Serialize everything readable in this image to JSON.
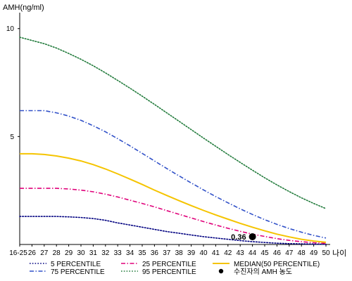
{
  "chart_data": {
    "type": "line",
    "ylabel": "AMH(ng/ml)",
    "xlabel": "나이",
    "y_ticks": [
      "5",
      "10"
    ],
    "ylim": [
      0,
      11
    ],
    "x_ticks": [
      "16-25",
      "26",
      "27",
      "28",
      "29",
      "30",
      "31",
      "32",
      "33",
      "34",
      "35",
      "36",
      "37",
      "38",
      "39",
      "40",
      "41",
      "42",
      "43",
      "44",
      "45",
      "46",
      "47",
      "48",
      "49",
      "50"
    ],
    "x": [
      25,
      26,
      27,
      28,
      29,
      30,
      31,
      32,
      33,
      34,
      35,
      36,
      37,
      38,
      39,
      40,
      41,
      42,
      43,
      44,
      45,
      46,
      47,
      48,
      49,
      50
    ],
    "series": [
      {
        "name": "5 PERCENTILE",
        "color": "#000080",
        "dash": "dotted",
        "values": [
          1.3,
          1.3,
          1.3,
          1.3,
          1.28,
          1.25,
          1.2,
          1.12,
          1.0,
          0.9,
          0.8,
          0.7,
          0.6,
          0.52,
          0.44,
          0.36,
          0.3,
          0.24,
          0.18,
          0.13,
          0.09,
          0.06,
          0.04,
          0.03,
          0.02,
          0.01
        ]
      },
      {
        "name": "25 PERCENTILE",
        "color": "#e0007a",
        "dash": "dashdot",
        "values": [
          2.6,
          2.6,
          2.6,
          2.6,
          2.57,
          2.52,
          2.44,
          2.33,
          2.2,
          2.05,
          1.9,
          1.74,
          1.57,
          1.4,
          1.23,
          1.06,
          0.9,
          0.75,
          0.61,
          0.48,
          0.37,
          0.27,
          0.19,
          0.13,
          0.08,
          0.05
        ]
      },
      {
        "name": "MEDIAN(50 PERCENTILE)",
        "color": "#f5c400",
        "dash": "solid",
        "values": [
          4.2,
          4.2,
          4.17,
          4.1,
          4.0,
          3.87,
          3.7,
          3.5,
          3.27,
          3.03,
          2.78,
          2.52,
          2.27,
          2.03,
          1.8,
          1.58,
          1.37,
          1.17,
          0.98,
          0.8,
          0.63,
          0.48,
          0.35,
          0.24,
          0.16,
          0.1
        ]
      },
      {
        "name": "75 PERCENTILE",
        "color": "#3050c8",
        "dash": "dashdot",
        "values": [
          6.2,
          6.2,
          6.2,
          6.1,
          5.95,
          5.75,
          5.5,
          5.22,
          4.9,
          4.57,
          4.22,
          3.87,
          3.52,
          3.18,
          2.85,
          2.53,
          2.22,
          1.93,
          1.65,
          1.39,
          1.15,
          0.93,
          0.74,
          0.57,
          0.42,
          0.3
        ]
      },
      {
        "name": "95 PERCENTILE",
        "color": "#207a3a",
        "dash": "dotted",
        "values": [
          9.6,
          9.45,
          9.3,
          9.1,
          8.85,
          8.58,
          8.28,
          7.95,
          7.6,
          7.24,
          6.87,
          6.49,
          6.1,
          5.71,
          5.32,
          4.93,
          4.55,
          4.17,
          3.8,
          3.44,
          3.09,
          2.76,
          2.45,
          2.16,
          1.9,
          1.66
        ]
      }
    ],
    "patient": {
      "name": "수진자의 AMH 농도",
      "x": 44,
      "y": 0.36,
      "label": "0.36",
      "color": "#000000"
    },
    "legend": {
      "position": "bottom",
      "items": [
        {
          "label": "5 PERCENTILE",
          "series": 0
        },
        {
          "label": "25 PERCENTILE",
          "series": 1
        },
        {
          "label": "MEDIAN(50 PERCENTILE)",
          "series": 2
        },
        {
          "label": "75 PERCENTILE",
          "series": 3
        },
        {
          "label": "95 PERCENTILE",
          "series": 4
        },
        {
          "label": "수진자의 AMH 농도",
          "marker": "dot"
        }
      ]
    },
    "grid": false
  }
}
